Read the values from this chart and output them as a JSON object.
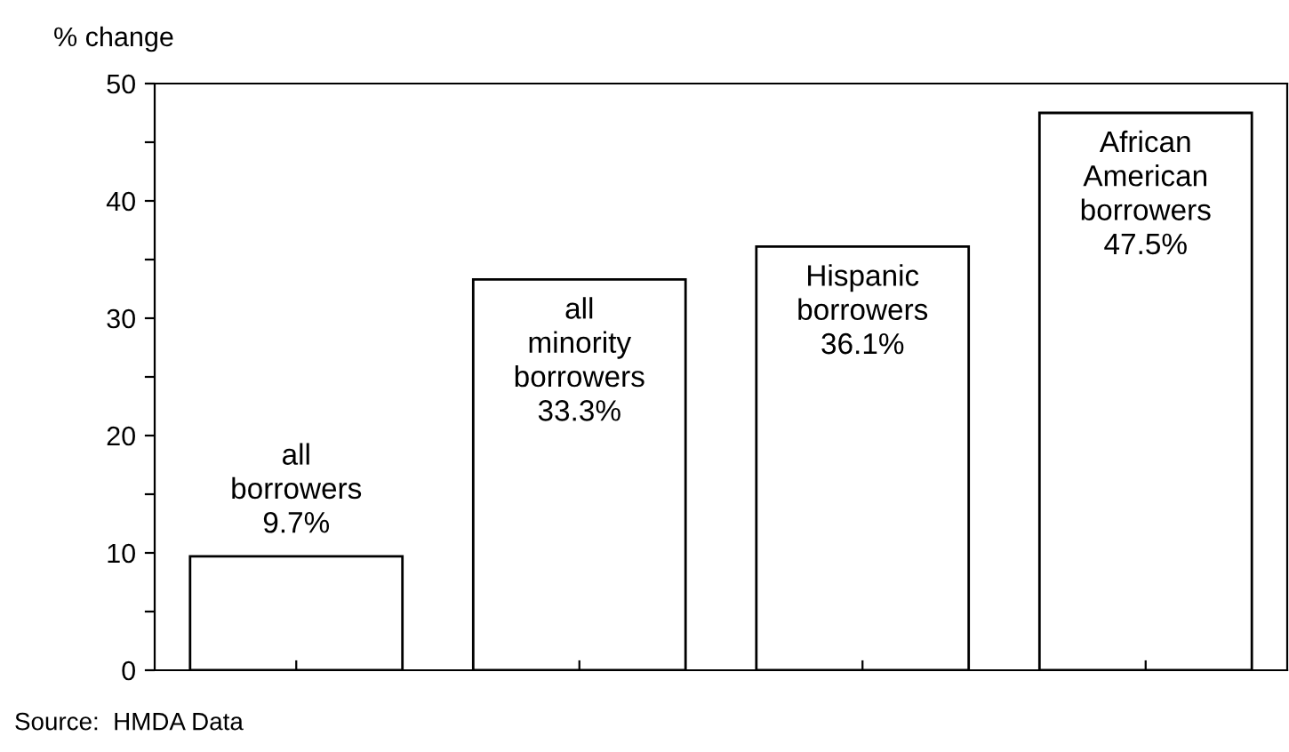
{
  "chart_data": {
    "type": "bar",
    "ylabel": "% change",
    "categories": [
      null,
      null,
      null,
      null
    ],
    "values": [
      9.7,
      33.3,
      36.1,
      47.5
    ],
    "value_labels": [
      "all\nborrowers\n9.7%",
      "all\nminority\nborrowers\n33.3%",
      "Hispanic\nborrowers\n36.1%",
      "African\nAmerican\nborrowers\n47.5%"
    ],
    "color": "#ffffff",
    "ylim": [
      0,
      50
    ],
    "yticks": [
      0,
      {
        "value": 5,
        "label": null
      },
      10,
      {
        "value": 15,
        "label": null
      },
      20,
      {
        "value": 25,
        "label": null
      },
      30,
      {
        "value": 35,
        "label": null
      },
      40,
      {
        "value": 45,
        "label": null
      },
      50
    ],
    "grid": false,
    "annotations": [
      "Source:  HMDA Data"
    ]
  }
}
